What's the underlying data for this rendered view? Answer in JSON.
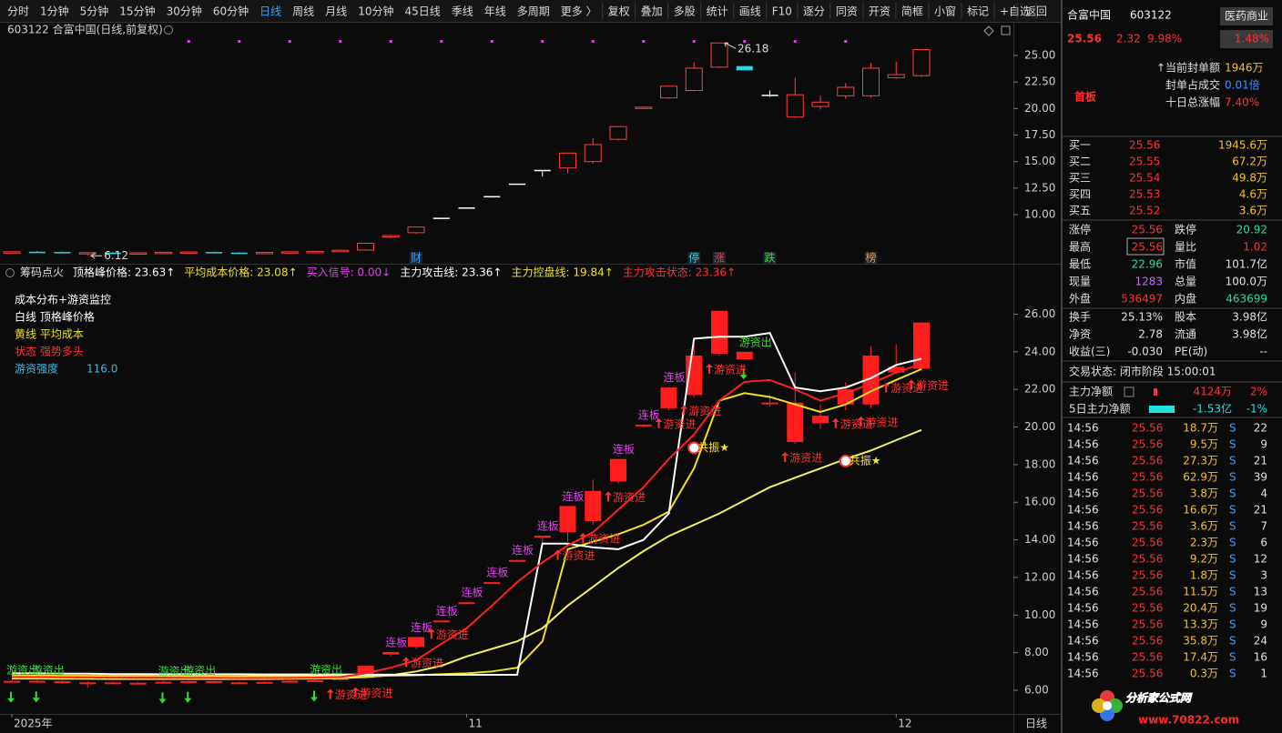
{
  "toolbar": {
    "items": [
      "分时",
      "1分钟",
      "5分钟",
      "15分钟",
      "30分钟",
      "60分钟",
      "日线",
      "周线",
      "月线",
      "10分钟",
      "45日线",
      "季线",
      "年线",
      "多周期",
      "更多 〉",
      "复权",
      "叠加",
      "多股",
      "统计",
      "画线",
      "F10",
      "逐分",
      "同资",
      "开资",
      "简框",
      "小窗",
      "标记",
      "+自选"
    ],
    "active": "日线",
    "back": "返回"
  },
  "chart_data": [
    {
      "type": "candlestick",
      "title": "603122 合富中国(日线,前复权)",
      "categories": [
        "2025年",
        null,
        null,
        null,
        null,
        null,
        null,
        null,
        null,
        null,
        null,
        null,
        null,
        null,
        null,
        null,
        null,
        null,
        "11",
        null,
        null,
        null,
        null,
        null,
        null,
        null,
        null,
        null,
        null,
        null,
        null,
        null,
        null,
        null,
        null,
        "12",
        null
      ],
      "open": [
        6.45,
        6.5,
        6.48,
        6.4,
        6.42,
        6.38,
        6.4,
        6.45,
        6.48,
        6.42,
        6.4,
        6.45,
        6.5,
        6.55,
        6.66,
        7.9,
        8.3,
        9.71,
        10.68,
        11.75,
        12.93,
        14.22,
        14.4,
        15.0,
        17.1,
        20.05,
        21.0,
        21.7,
        23.9,
        24.0,
        21.3,
        19.2,
        20.2,
        21.2,
        21.2,
        22.9,
        23.1
      ],
      "high": [
        6.55,
        6.56,
        6.52,
        6.48,
        6.46,
        6.45,
        6.5,
        6.52,
        6.51,
        6.46,
        6.48,
        6.55,
        6.58,
        6.68,
        7.3,
        8.03,
        8.83,
        9.71,
        10.68,
        11.75,
        12.93,
        14.22,
        15.8,
        17.2,
        18.3,
        20.13,
        22.14,
        24.36,
        26.18,
        24.0,
        21.7,
        22.9,
        21.2,
        22.4,
        24.3,
        24.4,
        25.56
      ],
      "low": [
        6.4,
        6.42,
        6.36,
        6.12,
        6.33,
        6.32,
        6.36,
        6.4,
        6.38,
        6.35,
        6.37,
        6.42,
        6.46,
        6.5,
        6.6,
        7.8,
        8.2,
        9.71,
        10.68,
        11.75,
        12.93,
        13.6,
        13.9,
        14.8,
        17.0,
        20.0,
        20.9,
        21.6,
        23.8,
        23.6,
        21.1,
        19.1,
        19.9,
        20.9,
        21.0,
        22.8,
        22.96
      ],
      "close": [
        6.5,
        6.47,
        6.42,
        6.42,
        6.38,
        6.4,
        6.45,
        6.48,
        6.43,
        6.4,
        6.44,
        6.5,
        6.53,
        6.64,
        7.3,
        8.03,
        8.83,
        9.71,
        10.68,
        11.75,
        12.93,
        14.22,
        15.8,
        16.6,
        18.3,
        20.13,
        22.1,
        23.8,
        26.18,
        23.6,
        21.3,
        21.3,
        20.6,
        22.0,
        23.8,
        23.2,
        25.56
      ],
      "ylim": [
        5.8,
        26.8
      ],
      "yticks": [
        {
          "value": 25,
          "label": "25.00"
        },
        {
          "value": 22.5,
          "label": "22.50"
        },
        {
          "value": 20,
          "label": "20.00"
        },
        {
          "value": 17.5,
          "label": "17.50"
        },
        {
          "value": 15,
          "label": "15.00"
        },
        {
          "value": 12.5,
          "label": "12.50"
        },
        {
          "value": 10,
          "label": "10.00"
        }
      ],
      "grid": false,
      "up_color": "#ff3c3c",
      "down_color": "#28d8e8",
      "flat_color": "#ffffff",
      "event_tags": [
        null,
        null,
        null,
        null,
        null,
        null,
        null,
        null,
        null,
        null,
        null,
        null,
        null,
        null,
        null,
        null,
        "财",
        null,
        null,
        null,
        null,
        null,
        null,
        null,
        null,
        null,
        null,
        "停",
        "涨",
        null,
        "跌",
        null,
        null,
        null,
        "榜",
        null,
        null
      ],
      "event_colors": {
        "财": "#3aa0ff",
        "停": "#28d8e8",
        "涨": "#ff3c3c",
        "跌": "#30e030",
        "榜": "#f0a030"
      }
    },
    {
      "type": "line",
      "legend": [
        [
          {
            "text": "成本分布+游资监控",
            "color": "#ffffff"
          }
        ],
        [
          {
            "text": "白线 顶格峰价格",
            "color": "#ffffff"
          }
        ],
        [
          {
            "text": "黄线 平均成本",
            "color": "#f0e020"
          }
        ],
        [
          {
            "text": "状态 强势多头",
            "color": "#ff3030"
          }
        ],
        [
          {
            "text": "游资强度",
            "color": "#40b8e0"
          },
          {
            "text": "116.0",
            "color": "#40b8e0"
          }
        ]
      ],
      "series": [
        {
          "color": "#f0f060",
          "values": [
            6.62,
            6.62,
            6.61,
            6.61,
            6.6,
            6.6,
            6.6,
            6.6,
            6.6,
            6.6,
            6.6,
            6.61,
            6.62,
            6.64,
            6.7,
            6.8,
            7.0,
            7.3,
            7.8,
            8.2,
            8.6,
            9.3,
            10.5,
            11.5,
            12.5,
            13.4,
            14.2,
            14.8,
            15.4,
            16.1,
            16.8,
            17.3,
            17.8,
            18.3,
            18.75,
            19.3,
            19.84
          ]
        },
        {
          "color": "#f0e020",
          "values": [
            6.78,
            6.78,
            6.77,
            6.77,
            6.76,
            6.76,
            6.76,
            6.75,
            6.75,
            6.75,
            6.75,
            6.75,
            6.75,
            6.75,
            6.75,
            6.78,
            6.8,
            6.85,
            6.9,
            7.0,
            7.2,
            8.6,
            13.5,
            13.9,
            14.3,
            14.8,
            15.5,
            17.8,
            21.4,
            21.8,
            21.6,
            21.2,
            20.8,
            21.2,
            21.9,
            22.5,
            23.08
          ]
        },
        {
          "color": "#ffffff",
          "values": [
            6.9,
            6.9,
            6.88,
            6.88,
            6.86,
            6.86,
            6.85,
            6.85,
            6.85,
            6.85,
            6.84,
            6.84,
            6.84,
            6.84,
            6.83,
            6.83,
            6.82,
            6.82,
            6.82,
            6.82,
            6.82,
            13.8,
            13.8,
            13.6,
            13.5,
            14.0,
            15.4,
            24.7,
            24.8,
            24.8,
            25.0,
            22.1,
            21.9,
            22.1,
            22.6,
            23.3,
            23.63
          ]
        },
        {
          "color": "#ff2020",
          "values": [
            6.7,
            6.7,
            6.69,
            6.68,
            6.67,
            6.66,
            6.66,
            6.66,
            6.66,
            6.65,
            6.65,
            6.66,
            6.67,
            6.7,
            6.9,
            7.2,
            7.6,
            8.47,
            9.3,
            10.5,
            11.75,
            12.8,
            13.7,
            14.4,
            15.6,
            16.8,
            18.3,
            19.6,
            21.4,
            22.4,
            22.5,
            22.0,
            21.4,
            21.8,
            22.3,
            22.9,
            23.36
          ]
        }
      ],
      "candle_color": "#ff1e1e",
      "ylim": [
        4.5,
        28.2
      ],
      "yticks": [
        {
          "value": 26,
          "label": "26.00"
        },
        {
          "value": 24,
          "label": "24.00"
        },
        {
          "value": 22,
          "label": "22.00"
        },
        {
          "value": 20,
          "label": "20.00"
        },
        {
          "value": 18,
          "label": "18.00"
        },
        {
          "value": 16,
          "label": "16.00"
        },
        {
          "value": 14,
          "label": "14.00"
        },
        {
          "value": 12,
          "label": "12.00"
        },
        {
          "value": 10,
          "label": "10.00"
        },
        {
          "value": 8,
          "label": "8.00"
        },
        {
          "value": 6,
          "label": "6.00"
        }
      ],
      "grid": false,
      "tags": {
        "above": [
          "游资出",
          "游资出",
          null,
          null,
          null,
          null,
          "游资出",
          "游资出",
          null,
          null,
          null,
          null,
          "游资出",
          null,
          null,
          "连板",
          "连板",
          "连板",
          "连板",
          "连板",
          "连板",
          "连板",
          "连板",
          null,
          "连板",
          "连板",
          "连板",
          null,
          null,
          "游资出",
          null,
          null,
          null,
          null,
          null,
          null,
          null
        ],
        "below": [
          null,
          null,
          null,
          null,
          null,
          null,
          null,
          null,
          null,
          null,
          null,
          null,
          null,
          "游资进",
          "游资进",
          null,
          "游资进",
          "游资进",
          null,
          null,
          null,
          null,
          "游资进",
          "游资进",
          "游资进",
          null,
          "游资进",
          "游资进",
          "游资进",
          null,
          null,
          "游资进",
          null,
          "游资进",
          "游资进",
          "游资进",
          "游资进"
        ],
        "signal": [
          null,
          null,
          null,
          null,
          null,
          null,
          null,
          null,
          null,
          null,
          null,
          null,
          null,
          null,
          null,
          null,
          null,
          null,
          null,
          null,
          null,
          null,
          null,
          null,
          null,
          null,
          null,
          "共振★",
          null,
          null,
          null,
          null,
          null,
          "共振★",
          null,
          null,
          null
        ]
      },
      "tag_styles": {
        "连板": {
          "color": "#e040f0"
        },
        "游资进": {
          "color": "#ff3030",
          "arrow": "up"
        },
        "游资出": {
          "color": "#30e030",
          "arrow": "down"
        },
        "共振★": {
          "color": "#ffe020"
        }
      }
    }
  ],
  "indicator_bar": [
    {
      "text": "筹码点火",
      "color": "#e0e0e0"
    },
    {
      "text": "顶格峰价格: 23.63↑",
      "color": "#ffffff"
    },
    {
      "text": "平均成本价格: 23.08↑",
      "color": "#f0e020"
    },
    {
      "text": "买入信号: 0.00↓",
      "color": "#e040f0"
    },
    {
      "text": "主力攻击线: 23.36↑",
      "color": "#ffffff"
    },
    {
      "text": "主力控盘线: 19.84↑",
      "color": "#f0e020"
    },
    {
      "text": "主力攻击状态: 23.36↑",
      "color": "#ff3030"
    }
  ],
  "x_axis": {
    "period": "日线"
  },
  "panel": {
    "name": "合富中国",
    "code": "603122",
    "sector": "医药商业",
    "price": "25.56",
    "change": "2.32",
    "pct": "9.98%",
    "sector_pct": "1.48%",
    "badge": "首板",
    "info": [
      [
        "↑当前封单额",
        "1946万",
        "#f0c030"
      ],
      [
        "封单占成交",
        "0.01倍",
        "#3c8cff"
      ],
      [
        "十日总涨幅",
        "7.40%",
        "#ff3030"
      ]
    ],
    "book": [
      [
        "买一",
        "25.56",
        "1945.6万"
      ],
      [
        "买二",
        "25.55",
        "67.2万"
      ],
      [
        "买三",
        "25.54",
        "49.8万"
      ],
      [
        "买四",
        "25.53",
        "4.6万"
      ],
      [
        "买五",
        "25.52",
        "3.6万"
      ]
    ],
    "stats": [
      [
        [
          [
            "涨停",
            "25.56",
            "#ff3030"
          ],
          [
            "跌停",
            "20.92",
            "#20e0a0"
          ]
        ],
        [
          [
            "最高",
            "25.56",
            "#ff3030"
          ],
          [
            "量比",
            "1.02",
            "#ff3030"
          ]
        ],
        [
          [
            "最低",
            "22.96",
            "#20e0a0"
          ],
          [
            "市值",
            "101.7亿",
            "#e0e0e0"
          ]
        ],
        [
          [
            "现量",
            "1283",
            "#c070ff"
          ],
          [
            "总量",
            "100.0万",
            "#e0e0e0"
          ]
        ],
        [
          [
            "外盘",
            "536497",
            "#ff3030"
          ],
          [
            "内盘",
            "463699",
            "#20e0a0"
          ]
        ]
      ],
      [
        [
          [
            "换手",
            "25.13%",
            "#e0e0e0"
          ],
          [
            "股本",
            "3.98亿",
            "#e0e0e0"
          ]
        ],
        [
          [
            "净资",
            "2.78",
            "#e0e0e0"
          ],
          [
            "流通",
            "3.98亿",
            "#e0e0e0"
          ]
        ],
        [
          [
            "收益(三)",
            "-0.030",
            "#e0e0e0"
          ],
          [
            "PE(动)",
            "--",
            "#e0e0e0"
          ]
        ]
      ]
    ],
    "status": "交易状态: 闭市阶段 15:00:01",
    "flow": [
      [
        "主力净额",
        "4124万",
        "2%",
        "#ff3030"
      ],
      [
        "5日主力净额",
        "-1.53亿",
        "-1%",
        "#20e0e0"
      ]
    ],
    "ticks": [
      [
        "14:56",
        "25.56",
        "18.7万",
        "S",
        "22"
      ],
      [
        "14:56",
        "25.56",
        "9.5万",
        "S",
        "9"
      ],
      [
        "14:56",
        "25.56",
        "27.3万",
        "S",
        "21"
      ],
      [
        "14:56",
        "25.56",
        "62.9万",
        "S",
        "39"
      ],
      [
        "14:56",
        "25.56",
        "3.8万",
        "S",
        "4"
      ],
      [
        "14:56",
        "25.56",
        "16.6万",
        "S",
        "21"
      ],
      [
        "14:56",
        "25.56",
        "3.6万",
        "S",
        "7"
      ],
      [
        "14:56",
        "25.56",
        "2.3万",
        "S",
        "6"
      ],
      [
        "14:56",
        "25.56",
        "9.2万",
        "S",
        "12"
      ],
      [
        "14:56",
        "25.56",
        "1.8万",
        "S",
        "3"
      ],
      [
        "14:56",
        "25.56",
        "11.5万",
        "S",
        "13"
      ],
      [
        "14:56",
        "25.56",
        "20.4万",
        "S",
        "19"
      ],
      [
        "14:56",
        "25.56",
        "13.3万",
        "S",
        "9"
      ],
      [
        "14:56",
        "25.56",
        "35.8万",
        "S",
        "24"
      ],
      [
        "14:56",
        "25.56",
        "17.4万",
        "S",
        "16"
      ],
      [
        "14:56",
        "25.56",
        "0.3万",
        "S",
        "1"
      ]
    ]
  },
  "watermark": {
    "title": "分析家公式网",
    "url": "www.70822.com"
  }
}
